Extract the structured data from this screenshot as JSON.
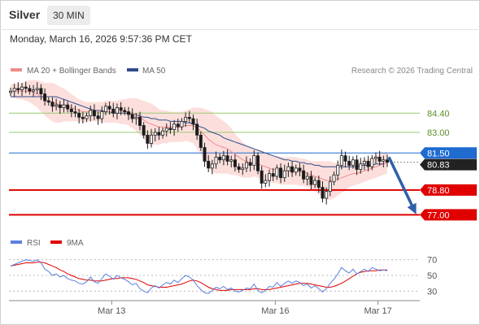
{
  "header": {
    "instrument": "Silver",
    "timeframe": "30 MIN",
    "datetime": "Monday, March 16, 2026 9:57:36 PM CET"
  },
  "legend": {
    "main": [
      {
        "label": "MA 20 + Bollinger Bands",
        "color": "#f08c8c"
      },
      {
        "label": "MA 50",
        "color": "#2e4c8c"
      }
    ],
    "credit": "Research © 2026 Trading Central",
    "rsi": [
      {
        "label": "RSI",
        "color": "#5b7fe0"
      },
      {
        "label": "9MA",
        "color": "#e00000"
      }
    ]
  },
  "colors": {
    "bullish": "#ffffff",
    "bearish": "#1a1a1a",
    "support": "#e00000",
    "target_line": "#9acc70",
    "pivot": "#1f6bd0",
    "last_price_bg": "#222222",
    "arrow": "#2f5fa8",
    "band_fill": "#fbd9d6"
  },
  "chart_data": [
    {
      "type": "candlestick",
      "title": "Silver",
      "timeframe": "30 MIN",
      "x_tick_labels": [
        "Mar 13",
        "Mar 16",
        "Mar 17"
      ],
      "y_range": [
        75.6,
        86.9
      ],
      "levels": [
        {
          "label": "84.40",
          "value": 84.4,
          "kind": "resistance"
        },
        {
          "label": "83.00",
          "value": 83.0,
          "kind": "resistance"
        },
        {
          "label": "81.50",
          "value": 81.5,
          "kind": "pivot"
        },
        {
          "label": "80.83",
          "value": 80.83,
          "kind": "last"
        },
        {
          "label": "78.80",
          "value": 78.8,
          "kind": "support"
        },
        {
          "label": "77.00",
          "value": 77.0,
          "kind": "support"
        }
      ],
      "projection": {
        "from": 81.2,
        "to": 77.0,
        "direction": "down"
      },
      "candles_close": [
        86.0,
        86.2,
        86.1,
        86.3,
        86.2,
        86.0,
        86.1,
        86.2,
        85.8,
        85.3,
        85.2,
        84.9,
        85.0,
        84.8,
        85.0,
        84.7,
        84.5,
        84.4,
        84.1,
        84.0,
        84.2,
        84.6,
        84.2,
        84.0,
        84.5,
        84.9,
        84.7,
        84.4,
        84.8,
        84.6,
        84.5,
        84.3,
        84.0,
        84.1,
        83.5,
        82.8,
        82.2,
        82.8,
        83.0,
        82.8,
        83.1,
        83.3,
        83.2,
        83.6,
        83.4,
        83.8,
        84.1,
        84.0,
        83.6,
        82.8,
        81.9,
        80.9,
        80.4,
        80.7,
        81.2,
        81.0,
        81.3,
        80.9,
        81.0,
        80.5,
        80.3,
        80.4,
        80.8,
        80.6,
        81.3,
        80.2,
        79.3,
        79.5,
        80.0,
        79.8,
        80.4,
        79.7,
        80.2,
        80.5,
        80.1,
        80.4,
        80.2,
        79.6,
        79.8,
        79.2,
        79.5,
        79.0,
        78.2,
        78.7,
        79.4,
        79.9,
        80.6,
        81.3,
        80.9,
        80.6,
        81.0,
        80.3,
        80.7,
        80.9,
        80.5,
        81.1,
        81.2,
        80.9,
        81.0,
        80.83
      ],
      "ma20": [
        86.0,
        86.0,
        86.0,
        86.0,
        86.0,
        86.0,
        85.9,
        85.8,
        85.6,
        85.4,
        85.3,
        85.2,
        85.1,
        85.0,
        85.0,
        84.9,
        84.8,
        84.7,
        84.6,
        84.5,
        84.5,
        84.5,
        84.5,
        84.5,
        84.5,
        84.5,
        84.5,
        84.5,
        84.5,
        84.5,
        84.5,
        84.5,
        84.4,
        84.3,
        84.1,
        83.9,
        83.7,
        83.6,
        83.5,
        83.4,
        83.4,
        83.4,
        83.4,
        83.4,
        83.4,
        83.4,
        83.5,
        83.5,
        83.5,
        83.3,
        83.1,
        82.8,
        82.5,
        82.3,
        82.1,
        82.0,
        81.9,
        81.8,
        81.6,
        81.4,
        81.2,
        81.0,
        80.9,
        80.8,
        80.8,
        80.7,
        80.6,
        80.5,
        80.4,
        80.3,
        80.3,
        80.2,
        80.2,
        80.2,
        80.2,
        80.2,
        80.1,
        80.1,
        80.0,
        79.9,
        79.8,
        79.7,
        79.6,
        79.5,
        79.5,
        79.5,
        79.6,
        79.7,
        79.8,
        79.9,
        80.0,
        80.0,
        80.1,
        80.2,
        80.3,
        80.4,
        80.5,
        80.6,
        80.7,
        80.8
      ],
      "ma50": [
        85.6,
        85.6,
        85.6,
        85.6,
        85.6,
        85.6,
        85.6,
        85.6,
        85.6,
        85.6,
        85.6,
        85.6,
        85.6,
        85.5,
        85.4,
        85.3,
        85.2,
        85.1,
        85.0,
        84.9,
        84.8,
        84.7,
        84.6,
        84.6,
        84.6,
        84.5,
        84.5,
        84.4,
        84.4,
        84.4,
        84.4,
        84.4,
        84.3,
        84.3,
        84.2,
        84.1,
        84.1,
        84.0,
        84.0,
        83.9,
        83.9,
        83.9,
        83.8,
        83.8,
        83.8,
        83.8,
        83.7,
        83.7,
        83.6,
        83.5,
        83.4,
        83.3,
        83.1,
        83.0,
        82.9,
        82.8,
        82.6,
        82.5,
        82.4,
        82.3,
        82.2,
        82.1,
        82.0,
        81.9,
        81.8,
        81.7,
        81.6,
        81.5,
        81.4,
        81.3,
        81.2,
        81.1,
        81.0,
        81.0,
        80.9,
        80.9,
        80.8,
        80.8,
        80.7,
        80.7,
        80.6,
        80.6,
        80.5,
        80.5,
        80.5,
        80.5,
        80.5,
        80.5,
        80.5,
        80.5,
        80.5,
        80.5,
        80.6,
        80.6,
        80.6,
        80.6,
        80.7,
        80.7,
        80.7,
        80.8
      ],
      "band_halfwidth": [
        0.5,
        0.5,
        0.6,
        0.6,
        0.7,
        0.8,
        0.9,
        1.0,
        1.1,
        1.2,
        1.3,
        1.4,
        1.4,
        1.3,
        1.2,
        1.1,
        1.0,
        0.9,
        0.8,
        0.8,
        0.7,
        0.7,
        0.7,
        0.7,
        0.7,
        0.8,
        0.8,
        0.8,
        0.8,
        0.9,
        0.9,
        1.0,
        1.1,
        1.2,
        1.3,
        1.4,
        1.5,
        1.5,
        1.4,
        1.3,
        1.2,
        1.2,
        1.1,
        1.1,
        1.1,
        1.1,
        1.1,
        1.2,
        1.3,
        1.5,
        1.7,
        1.9,
        2.1,
        2.2,
        2.1,
        2.0,
        1.9,
        1.8,
        1.7,
        1.5,
        1.4,
        1.3,
        1.2,
        1.1,
        1.0,
        1.0,
        1.0,
        1.0,
        1.0,
        1.0,
        1.0,
        1.0,
        1.0,
        1.0,
        1.0,
        1.0,
        1.0,
        1.0,
        1.0,
        1.0,
        1.1,
        1.2,
        1.3,
        1.4,
        1.4,
        1.3,
        1.2,
        1.1,
        1.0,
        0.9,
        0.9,
        0.8,
        0.8,
        0.8,
        0.8,
        0.8,
        0.8,
        0.8,
        0.8,
        0.8
      ]
    },
    {
      "type": "line",
      "title": "RSI",
      "y_range": [
        20,
        80
      ],
      "y_ticks": [
        70,
        50,
        30
      ],
      "gridlines": [
        70,
        50,
        30
      ],
      "series": [
        {
          "name": "RSI",
          "values": [
            62,
            64,
            66,
            68,
            70,
            69,
            68,
            70,
            66,
            58,
            55,
            50,
            52,
            48,
            50,
            46,
            44,
            43,
            40,
            39,
            42,
            48,
            42,
            40,
            46,
            52,
            49,
            45,
            50,
            47,
            45,
            42,
            38,
            40,
            33,
            30,
            28,
            34,
            37,
            34,
            38,
            41,
            39,
            44,
            41,
            46,
            50,
            48,
            44,
            37,
            32,
            28,
            27,
            31,
            35,
            33,
            36,
            32,
            34,
            30,
            29,
            31,
            34,
            33,
            39,
            31,
            28,
            31,
            36,
            35,
            41,
            36,
            40,
            43,
            40,
            43,
            41,
            37,
            39,
            34,
            37,
            33,
            29,
            33,
            40,
            45,
            52,
            60,
            56,
            53,
            58,
            52,
            55,
            58,
            55,
            60,
            58,
            56,
            57,
            56
          ]
        },
        {
          "name": "9MA",
          "values": [
            62,
            63,
            64,
            65,
            66,
            66,
            66,
            67,
            67,
            66,
            64,
            62,
            60,
            57,
            55,
            52,
            50,
            48,
            46,
            45,
            44,
            44,
            43,
            43,
            43,
            44,
            45,
            46,
            46,
            47,
            47,
            47,
            46,
            45,
            43,
            41,
            38,
            37,
            36,
            35,
            35,
            35,
            36,
            37,
            38,
            39,
            41,
            43,
            44,
            43,
            41,
            38,
            35,
            33,
            32,
            31,
            31,
            31,
            32,
            32,
            32,
            32,
            32,
            32,
            33,
            33,
            32,
            32,
            32,
            33,
            34,
            35,
            36,
            37,
            38,
            39,
            40,
            40,
            40,
            39,
            38,
            37,
            36,
            35,
            35,
            36,
            38,
            40,
            43,
            46,
            49,
            52,
            54,
            55,
            56,
            56,
            56,
            57,
            57,
            57
          ]
        }
      ]
    }
  ]
}
